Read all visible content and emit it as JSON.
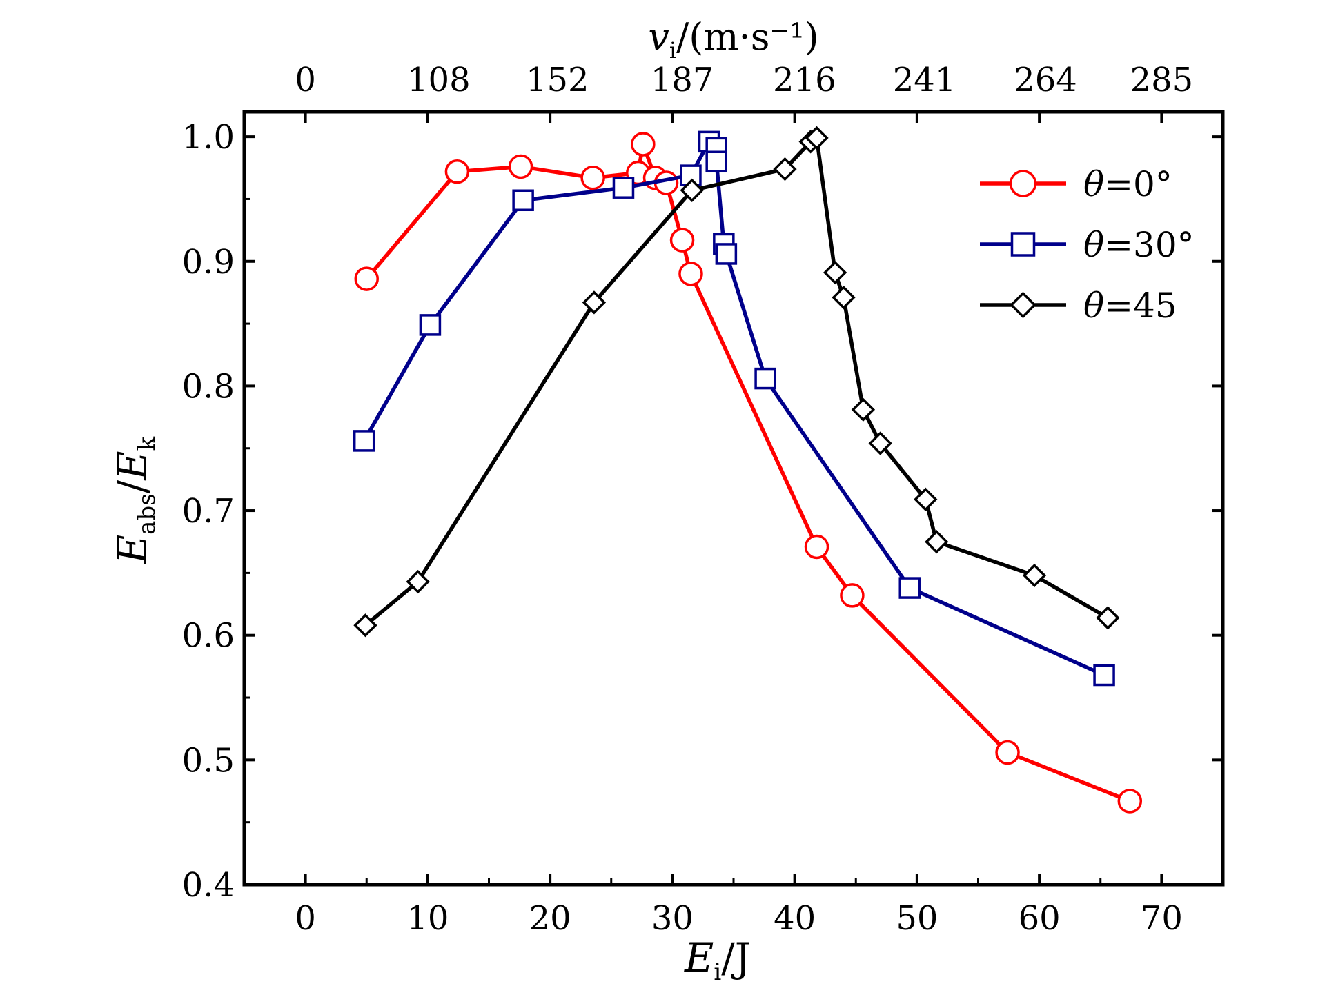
{
  "chart_data": {
    "type": "line",
    "xlabel": {
      "main": "E",
      "sub": "i",
      "unit": "/J"
    },
    "ylabel": {
      "main1": "E",
      "sub1": "abs",
      "sep": "/",
      "main2": "E",
      "sub2": "k"
    },
    "top_axis_label": {
      "main": "v",
      "sub": "i",
      "unit": "/(m·s⁻¹)"
    },
    "xlim": [
      -5,
      75
    ],
    "ylim": [
      0.4,
      1.02
    ],
    "x_ticks": [
      0,
      10,
      20,
      30,
      40,
      50,
      60,
      70
    ],
    "y_ticks": [
      0.4,
      0.5,
      0.6,
      0.7,
      0.8,
      0.9,
      1.0
    ],
    "x_tick_labels": [
      "0",
      "10",
      "20",
      "30",
      "40",
      "50",
      "60",
      "70"
    ],
    "y_tick_labels": [
      "0.4",
      "0.5",
      "0.6",
      "0.7",
      "0.8",
      "0.9",
      "1.0"
    ],
    "top_ticks": [
      {
        "x": 0,
        "label": "0"
      },
      {
        "x": 10.9,
        "label": "108"
      },
      {
        "x": 20.6,
        "label": "152"
      },
      {
        "x": 30.8,
        "label": "187"
      },
      {
        "x": 40.8,
        "label": "216"
      },
      {
        "x": 50.6,
        "label": "241"
      },
      {
        "x": 60.5,
        "label": "264"
      },
      {
        "x": 70.0,
        "label": "285"
      }
    ],
    "grid": false,
    "legend_position": "top-right",
    "series": [
      {
        "name": "θ=0°",
        "color": "#ff0000",
        "marker": "circle",
        "points": [
          [
            5.0,
            0.886
          ],
          [
            12.4,
            0.972
          ],
          [
            17.6,
            0.976
          ],
          [
            23.5,
            0.967
          ],
          [
            27.2,
            0.971
          ],
          [
            27.6,
            0.994
          ],
          [
            28.6,
            0.967
          ],
          [
            29.5,
            0.963
          ],
          [
            30.8,
            0.917
          ],
          [
            31.5,
            0.89
          ],
          [
            41.8,
            0.671
          ],
          [
            44.7,
            0.632
          ],
          [
            57.4,
            0.506
          ],
          [
            67.4,
            0.467
          ]
        ]
      },
      {
        "name": "θ=30°",
        "color": "#00008b",
        "marker": "square",
        "points": [
          [
            4.8,
            0.756
          ],
          [
            10.2,
            0.849
          ],
          [
            17.8,
            0.949
          ],
          [
            26.0,
            0.959
          ],
          [
            31.5,
            0.969
          ],
          [
            33.0,
            0.996
          ],
          [
            33.6,
            0.991
          ],
          [
            33.6,
            0.98
          ],
          [
            34.2,
            0.914
          ],
          [
            34.4,
            0.906
          ],
          [
            37.6,
            0.806
          ],
          [
            49.4,
            0.638
          ],
          [
            65.3,
            0.568
          ]
        ]
      },
      {
        "name": "θ=45",
        "color": "#000000",
        "marker": "diamond",
        "points": [
          [
            4.9,
            0.608
          ],
          [
            9.2,
            0.643
          ],
          [
            23.6,
            0.867
          ],
          [
            31.6,
            0.957
          ],
          [
            39.2,
            0.974
          ],
          [
            41.3,
            0.996
          ],
          [
            41.8,
            0.999
          ],
          [
            43.3,
            0.891
          ],
          [
            44.0,
            0.871
          ],
          [
            45.6,
            0.781
          ],
          [
            47.0,
            0.754
          ],
          [
            50.7,
            0.709
          ],
          [
            51.6,
            0.675
          ],
          [
            59.6,
            0.648
          ],
          [
            65.6,
            0.614
          ]
        ]
      }
    ]
  }
}
